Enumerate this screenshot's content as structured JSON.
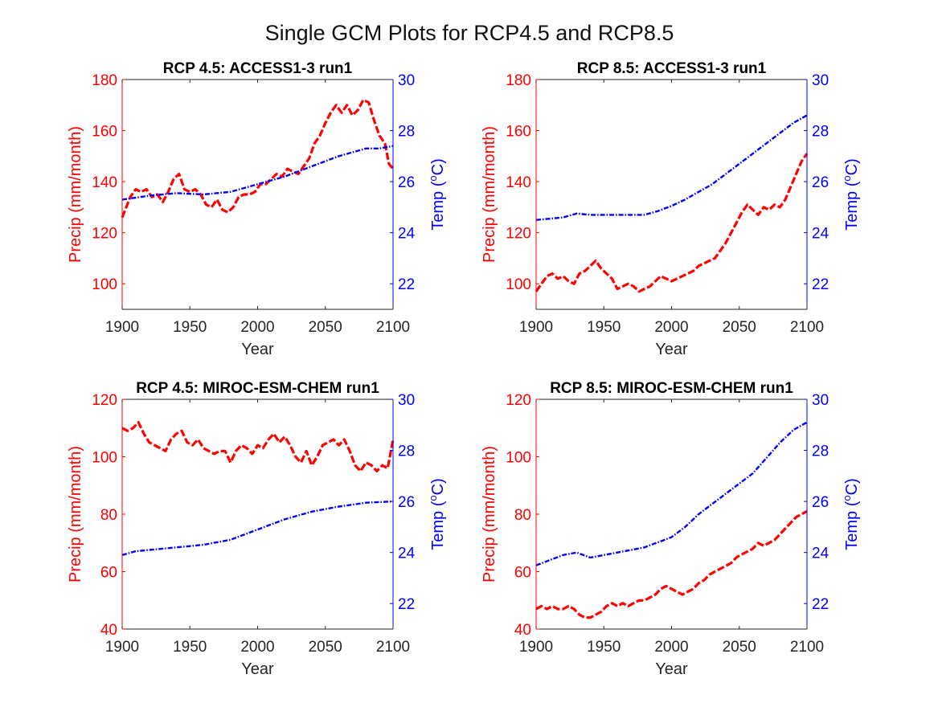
{
  "figure": {
    "title": "Single GCM Plots for RCP4.5 and RCP8.5"
  },
  "colors": {
    "precip": "#ff0000",
    "temp": "#0000ff",
    "axis": "#262626"
  },
  "chart_data": [
    {
      "type": "line",
      "title": "RCP 4.5: ACCESS1-3 run1",
      "xlabel": "Year",
      "ylabel_left": "Precip (mm/month)",
      "ylabel_right_prefix": "Temp (",
      "ylabel_right_sup": "o",
      "ylabel_right_suffix": "C)",
      "xlim": [
        1900,
        2100
      ],
      "xticks": [
        1900,
        1950,
        2000,
        2050,
        2100
      ],
      "ylim_left": [
        90,
        180
      ],
      "yticks_left": [
        100,
        120,
        140,
        160,
        180
      ],
      "ylim_right": [
        21,
        30
      ],
      "yticks_right": [
        22,
        24,
        26,
        28,
        30
      ],
      "grid": false,
      "legend": "none",
      "series": [
        {
          "name": "Precip",
          "axis": "left",
          "style": "dashed",
          "x": [
            1900,
            1903,
            1906,
            1910,
            1914,
            1918,
            1922,
            1926,
            1930,
            1934,
            1938,
            1942,
            1946,
            1950,
            1954,
            1958,
            1962,
            1966,
            1970,
            1974,
            1978,
            1982,
            1986,
            1990,
            1994,
            1998,
            2002,
            2006,
            2010,
            2014,
            2018,
            2022,
            2026,
            2030,
            2034,
            2038,
            2042,
            2046,
            2050,
            2054,
            2058,
            2062,
            2066,
            2070,
            2074,
            2078,
            2082,
            2086,
            2090,
            2094,
            2097,
            2100
          ],
          "values": [
            126,
            130,
            134,
            137,
            136,
            137,
            134,
            135,
            132,
            136,
            141,
            143,
            137,
            136,
            137,
            135,
            131,
            130,
            133,
            129,
            128,
            130,
            134,
            135,
            135,
            136,
            139,
            139,
            141,
            143,
            142,
            145,
            144,
            143,
            146,
            149,
            155,
            158,
            163,
            167,
            170,
            167,
            170,
            166,
            168,
            172,
            171,
            164,
            158,
            155,
            147,
            145
          ]
        },
        {
          "name": "Temp",
          "axis": "right",
          "style": "dashdot",
          "x": [
            1900,
            1920,
            1940,
            1960,
            1980,
            2000,
            2020,
            2040,
            2060,
            2080,
            2090,
            2100
          ],
          "values": [
            25.3,
            25.45,
            25.55,
            25.5,
            25.6,
            25.9,
            26.2,
            26.6,
            27.0,
            27.3,
            27.3,
            27.4
          ]
        }
      ]
    },
    {
      "type": "line",
      "title": "RCP 8.5: ACCESS1-3 run1",
      "xlabel": "Year",
      "ylabel_left": "Precip (mm/month)",
      "ylabel_right_prefix": "Temp (",
      "ylabel_right_sup": "o",
      "ylabel_right_suffix": "C)",
      "xlim": [
        1900,
        2100
      ],
      "xticks": [
        1900,
        1950,
        2000,
        2050,
        2100
      ],
      "ylim_left": [
        90,
        180
      ],
      "yticks_left": [
        100,
        120,
        140,
        160,
        180
      ],
      "ylim_right": [
        21,
        30
      ],
      "yticks_right": [
        22,
        24,
        26,
        28,
        30
      ],
      "grid": false,
      "legend": "none",
      "series": [
        {
          "name": "Precip",
          "axis": "left",
          "style": "dashed",
          "x": [
            1900,
            1904,
            1908,
            1912,
            1916,
            1920,
            1924,
            1928,
            1932,
            1936,
            1940,
            1944,
            1948,
            1952,
            1956,
            1960,
            1964,
            1968,
            1972,
            1976,
            1980,
            1984,
            1988,
            1992,
            1996,
            2000,
            2004,
            2008,
            2012,
            2016,
            2020,
            2024,
            2028,
            2032,
            2036,
            2040,
            2044,
            2048,
            2052,
            2056,
            2060,
            2064,
            2068,
            2072,
            2076,
            2080,
            2084,
            2088,
            2092,
            2096,
            2100
          ],
          "values": [
            97,
            100,
            103,
            104,
            102,
            103,
            101,
            100,
            104,
            105,
            107,
            109,
            106,
            104,
            102,
            98,
            99,
            100,
            99,
            97,
            98,
            99,
            101,
            103,
            102,
            101,
            102,
            103,
            104,
            105,
            107,
            108,
            109,
            110,
            113,
            116,
            120,
            124,
            128,
            131,
            129,
            127,
            130,
            129,
            131,
            130,
            133,
            138,
            143,
            148,
            151
          ]
        },
        {
          "name": "Temp",
          "axis": "right",
          "style": "dashdot",
          "x": [
            1900,
            1920,
            1930,
            1940,
            1960,
            1980,
            1990,
            2000,
            2010,
            2020,
            2030,
            2040,
            2050,
            2060,
            2070,
            2080,
            2090,
            2100
          ],
          "values": [
            24.5,
            24.6,
            24.75,
            24.7,
            24.7,
            24.7,
            24.85,
            25.05,
            25.3,
            25.6,
            25.9,
            26.3,
            26.7,
            27.1,
            27.5,
            27.9,
            28.3,
            28.6
          ]
        }
      ]
    },
    {
      "type": "line",
      "title": "RCP 4.5: MIROC-ESM-CHEM run1",
      "xlabel": "Year",
      "ylabel_left": "Precip (mm/month)",
      "ylabel_right_prefix": "Temp (",
      "ylabel_right_sup": "o",
      "ylabel_right_suffix": "C)",
      "xlim": [
        1900,
        2100
      ],
      "xticks": [
        1900,
        1950,
        2000,
        2050,
        2100
      ],
      "ylim_left": [
        40,
        120
      ],
      "yticks_left": [
        40,
        60,
        80,
        100,
        120
      ],
      "ylim_right": [
        21,
        30
      ],
      "yticks_right": [
        22,
        24,
        26,
        28,
        30
      ],
      "grid": false,
      "legend": "none",
      "series": [
        {
          "name": "Precip",
          "axis": "left",
          "style": "dashed",
          "x": [
            1900,
            1904,
            1908,
            1912,
            1916,
            1920,
            1924,
            1928,
            1932,
            1936,
            1940,
            1944,
            1948,
            1952,
            1956,
            1960,
            1964,
            1968,
            1972,
            1976,
            1980,
            1984,
            1988,
            1992,
            1996,
            2000,
            2004,
            2008,
            2012,
            2016,
            2020,
            2024,
            2028,
            2032,
            2036,
            2040,
            2044,
            2048,
            2052,
            2056,
            2060,
            2064,
            2068,
            2072,
            2076,
            2080,
            2084,
            2088,
            2092,
            2096,
            2100
          ],
          "values": [
            110,
            109,
            110,
            112,
            108,
            105,
            104,
            103,
            102,
            106,
            108,
            109,
            105,
            104,
            106,
            103,
            102,
            101,
            102,
            102,
            98,
            102,
            104,
            103,
            101,
            104,
            103,
            106,
            108,
            105,
            107,
            104,
            100,
            98,
            102,
            97,
            100,
            104,
            105,
            106,
            104,
            106,
            102,
            97,
            95,
            98,
            97,
            95,
            97,
            96,
            106
          ]
        },
        {
          "name": "Temp",
          "axis": "right",
          "style": "dashdot",
          "x": [
            1900,
            1910,
            1920,
            1940,
            1960,
            1980,
            2000,
            2020,
            2040,
            2060,
            2080,
            2100
          ],
          "values": [
            23.9,
            24.05,
            24.1,
            24.2,
            24.3,
            24.5,
            24.9,
            25.3,
            25.6,
            25.8,
            25.95,
            26.0
          ]
        }
      ]
    },
    {
      "type": "line",
      "title": "RCP 8.5: MIROC-ESM-CHEM run1",
      "xlabel": "Year",
      "ylabel_left": "Precip (mm/month)",
      "ylabel_right_prefix": "Temp (",
      "ylabel_right_sup": "o",
      "ylabel_right_suffix": "C)",
      "xlim": [
        1900,
        2100
      ],
      "xticks": [
        1900,
        1950,
        2000,
        2050,
        2100
      ],
      "ylim_left": [
        40,
        120
      ],
      "yticks_left": [
        40,
        60,
        80,
        100,
        120
      ],
      "ylim_right": [
        21,
        30
      ],
      "yticks_right": [
        22,
        24,
        26,
        28,
        30
      ],
      "grid": false,
      "legend": "none",
      "series": [
        {
          "name": "Precip",
          "axis": "left",
          "style": "dashed",
          "x": [
            1900,
            1904,
            1908,
            1912,
            1916,
            1920,
            1924,
            1928,
            1932,
            1936,
            1940,
            1944,
            1948,
            1952,
            1956,
            1960,
            1964,
            1968,
            1972,
            1976,
            1980,
            1984,
            1988,
            1992,
            1996,
            2000,
            2004,
            2008,
            2012,
            2016,
            2020,
            2024,
            2028,
            2032,
            2036,
            2040,
            2044,
            2048,
            2052,
            2056,
            2060,
            2064,
            2068,
            2072,
            2076,
            2080,
            2084,
            2088,
            2092,
            2096,
            2100
          ],
          "values": [
            47,
            48,
            47,
            48,
            47,
            47,
            48,
            47,
            45,
            44,
            44,
            45,
            46,
            48,
            49,
            48,
            49,
            48,
            49,
            50,
            50,
            51,
            52,
            54,
            55,
            54,
            53,
            52,
            53,
            54,
            56,
            57,
            59,
            60,
            61,
            62,
            63,
            65,
            66,
            67,
            68,
            70,
            69,
            70,
            71,
            73,
            75,
            77,
            79,
            80,
            81
          ]
        },
        {
          "name": "Temp",
          "axis": "right",
          "style": "dashdot",
          "x": [
            1900,
            1910,
            1920,
            1930,
            1940,
            1950,
            1960,
            1970,
            1980,
            1990,
            2000,
            2010,
            2020,
            2030,
            2040,
            2050,
            2060,
            2070,
            2080,
            2090,
            2100
          ],
          "values": [
            23.5,
            23.7,
            23.9,
            24.0,
            23.8,
            23.9,
            24.0,
            24.1,
            24.2,
            24.4,
            24.6,
            25.0,
            25.5,
            25.9,
            26.3,
            26.7,
            27.1,
            27.7,
            28.3,
            28.8,
            29.1
          ]
        }
      ]
    }
  ]
}
